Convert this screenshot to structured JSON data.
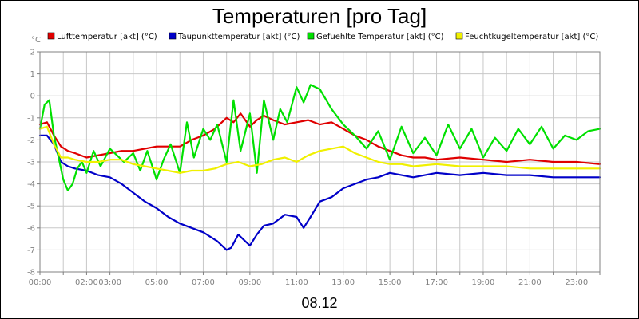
{
  "chart_data": {
    "type": "line",
    "title": "Temperaturen [pro Tag]",
    "y_unit": "°C",
    "date_label": "08.12",
    "ylim": [
      -8,
      2
    ],
    "yticks": [
      2,
      1,
      0,
      -1,
      -2,
      -3,
      -4,
      -5,
      -6,
      -7,
      -8
    ],
    "xlim": [
      0,
      24
    ],
    "xtick_labels": [
      {
        "x": 0,
        "label": "00:00"
      },
      {
        "x": 2,
        "label": "02:00"
      },
      {
        "x": 3,
        "label": "03:00"
      },
      {
        "x": 5,
        "label": "05:00"
      },
      {
        "x": 7,
        "label": "07:00"
      },
      {
        "x": 9,
        "label": "09:00"
      },
      {
        "x": 11,
        "label": "11:00"
      },
      {
        "x": 13,
        "label": "13:00"
      },
      {
        "x": 15,
        "label": "15:00"
      },
      {
        "x": 17,
        "label": "17:00"
      },
      {
        "x": 19,
        "label": "19:00"
      },
      {
        "x": 21,
        "label": "21:00"
      },
      {
        "x": 23,
        "label": "23:00"
      }
    ],
    "grid": true,
    "legend_position": "top",
    "series": [
      {
        "name": "Lufttemperatur [akt] (°C)",
        "color": "#e00000",
        "x": [
          0,
          0.3,
          0.6,
          0.9,
          1.2,
          1.5,
          2,
          2.5,
          3,
          3.5,
          4,
          4.5,
          5,
          5.5,
          6,
          6.5,
          7,
          7.5,
          7.8,
          8,
          8.3,
          8.6,
          9,
          9.3,
          9.6,
          10,
          10.5,
          11,
          11.5,
          12,
          12.5,
          13,
          13.5,
          14,
          14.5,
          15,
          15.5,
          16,
          16.5,
          17,
          18,
          19,
          20,
          21,
          22,
          23,
          24
        ],
        "y": [
          -1.3,
          -1.2,
          -1.8,
          -2.3,
          -2.5,
          -2.6,
          -2.8,
          -2.7,
          -2.6,
          -2.5,
          -2.5,
          -2.4,
          -2.3,
          -2.3,
          -2.3,
          -2.0,
          -1.8,
          -1.5,
          -1.2,
          -1.0,
          -1.2,
          -0.8,
          -1.4,
          -1.1,
          -0.9,
          -1.1,
          -1.3,
          -1.2,
          -1.1,
          -1.3,
          -1.2,
          -1.5,
          -1.8,
          -2.0,
          -2.3,
          -2.5,
          -2.7,
          -2.8,
          -2.8,
          -2.9,
          -2.8,
          -2.9,
          -3.0,
          -2.9,
          -3.0,
          -3.0,
          -3.1
        ]
      },
      {
        "name": "Taupunkttemperatur [akt] (°C)",
        "color": "#0000c8",
        "x": [
          0,
          0.3,
          0.6,
          0.9,
          1.2,
          1.5,
          2,
          2.5,
          3,
          3.5,
          4,
          4.5,
          5,
          5.5,
          6,
          6.5,
          7,
          7.3,
          7.6,
          8,
          8.2,
          8.5,
          8.8,
          9,
          9.3,
          9.6,
          10,
          10.5,
          11,
          11.3,
          11.6,
          12,
          12.5,
          13,
          13.5,
          14,
          14.5,
          15,
          15.5,
          16,
          16.5,
          17,
          18,
          19,
          20,
          21,
          22,
          23,
          24
        ],
        "y": [
          -1.8,
          -1.8,
          -2.2,
          -3.0,
          -3.2,
          -3.3,
          -3.4,
          -3.6,
          -3.7,
          -4.0,
          -4.4,
          -4.8,
          -5.1,
          -5.5,
          -5.8,
          -6.0,
          -6.2,
          -6.4,
          -6.6,
          -7.0,
          -6.9,
          -6.3,
          -6.6,
          -6.8,
          -6.3,
          -5.9,
          -5.8,
          -5.4,
          -5.5,
          -6.0,
          -5.5,
          -4.8,
          -4.6,
          -4.2,
          -4.0,
          -3.8,
          -3.7,
          -3.5,
          -3.6,
          -3.7,
          -3.6,
          -3.5,
          -3.6,
          -3.5,
          -3.6,
          -3.6,
          -3.7,
          -3.7,
          -3.7
        ]
      },
      {
        "name": "Gefuehlte Temperatur [akt] (°C)",
        "color": "#00e000",
        "x": [
          0,
          0.2,
          0.4,
          0.6,
          0.8,
          1,
          1.2,
          1.4,
          1.6,
          1.8,
          2,
          2.3,
          2.6,
          3,
          3.3,
          3.6,
          4,
          4.3,
          4.6,
          5,
          5.3,
          5.6,
          6,
          6.3,
          6.6,
          7,
          7.3,
          7.6,
          8,
          8.3,
          8.6,
          9,
          9.3,
          9.6,
          10,
          10.3,
          10.6,
          11,
          11.3,
          11.6,
          12,
          12.5,
          13,
          13.5,
          14,
          14.5,
          15,
          15.5,
          16,
          16.5,
          17,
          17.5,
          18,
          18.5,
          19,
          19.5,
          20,
          20.5,
          21,
          21.5,
          22,
          22.5,
          23,
          23.5,
          24
        ],
        "y": [
          -1.5,
          -0.4,
          -0.2,
          -1.8,
          -2.8,
          -3.8,
          -4.3,
          -4.0,
          -3.3,
          -3.0,
          -3.5,
          -2.5,
          -3.2,
          -2.4,
          -2.7,
          -3.0,
          -2.6,
          -3.4,
          -2.5,
          -3.8,
          -2.9,
          -2.2,
          -3.5,
          -1.2,
          -2.8,
          -1.5,
          -2.0,
          -1.3,
          -3.0,
          -0.2,
          -2.5,
          -0.8,
          -3.5,
          -0.2,
          -2.0,
          -0.6,
          -1.2,
          0.4,
          -0.3,
          0.5,
          0.3,
          -0.6,
          -1.3,
          -1.8,
          -2.4,
          -1.6,
          -2.9,
          -1.4,
          -2.6,
          -1.9,
          -2.7,
          -1.3,
          -2.4,
          -1.5,
          -2.8,
          -1.9,
          -2.5,
          -1.5,
          -2.2,
          -1.4,
          -2.4,
          -1.8,
          -2.0,
          -1.6,
          -1.5
        ]
      },
      {
        "name": "Feuchtkugeltemperatur [akt] (°C)",
        "color": "#f0f000",
        "x": [
          0,
          0.3,
          0.6,
          0.9,
          1.2,
          1.5,
          2,
          2.5,
          3,
          3.5,
          4,
          4.5,
          5,
          5.5,
          6,
          6.5,
          7,
          7.5,
          8,
          8.5,
          9,
          9.5,
          10,
          10.5,
          11,
          11.5,
          12,
          12.5,
          13,
          13.5,
          14,
          14.5,
          15,
          15.5,
          16,
          17,
          18,
          19,
          20,
          21,
          22,
          23,
          24
        ],
        "y": [
          -1.5,
          -1.4,
          -2.2,
          -2.8,
          -2.8,
          -2.9,
          -3.0,
          -3.0,
          -2.9,
          -2.9,
          -3.1,
          -3.2,
          -3.3,
          -3.4,
          -3.5,
          -3.4,
          -3.4,
          -3.3,
          -3.1,
          -3.0,
          -3.2,
          -3.1,
          -2.9,
          -2.8,
          -3.0,
          -2.7,
          -2.5,
          -2.4,
          -2.3,
          -2.6,
          -2.8,
          -3.0,
          -3.1,
          -3.1,
          -3.2,
          -3.1,
          -3.2,
          -3.2,
          -3.2,
          -3.3,
          -3.3,
          -3.3,
          -3.3
        ]
      }
    ]
  }
}
